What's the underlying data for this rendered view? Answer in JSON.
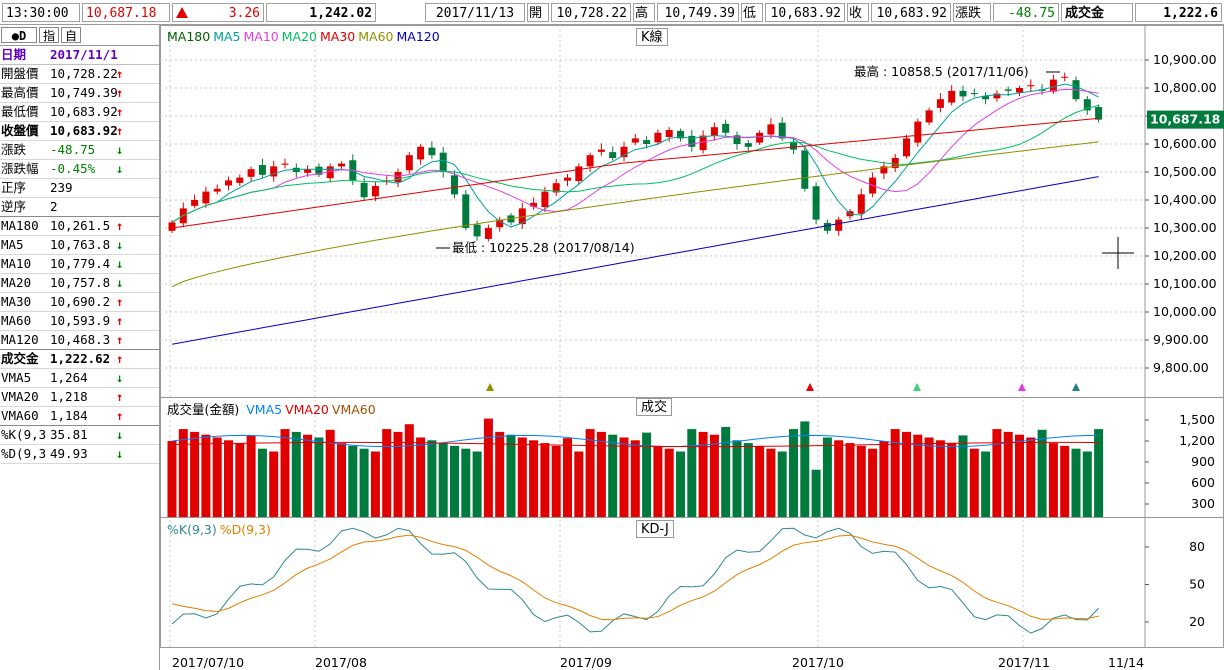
{
  "topbar": {
    "time": "13:30:00",
    "index_value": "10,687.18",
    "change": "3.26",
    "volume": "1,242.02",
    "date": "2017/11/13",
    "open_label": "開",
    "open_value": "10,728.22",
    "high_label": "高",
    "high_value": "10,749.39",
    "low_label": "低",
    "low_value": "10,683.92",
    "close_label": "收",
    "close_value": "10,683.92",
    "change_label": "漲跌",
    "change_value": "-48.75",
    "turnover_label": "成交金",
    "turnover_value": "1,222.6"
  },
  "left_panel": {
    "tabs": [
      "D",
      "指",
      "自"
    ],
    "date_label": "日期",
    "date_value": "2017/11/1",
    "rows": [
      {
        "label": "開盤價",
        "value": "10,728.22",
        "dir": "up",
        "color": "#000000"
      },
      {
        "label": "最高價",
        "value": "10,749.39",
        "dir": "up",
        "color": "#000000"
      },
      {
        "label": "最低價",
        "value": "10,683.92",
        "dir": "up",
        "color": "#000000"
      },
      {
        "label": "收盤價",
        "value": "10,683.92",
        "dir": "up",
        "color": "#000000",
        "bold": true
      },
      {
        "label": "漲跌",
        "value": "-48.75",
        "dir": "down",
        "color": "#008000"
      },
      {
        "label": "漲跌幅",
        "value": "-0.45%",
        "dir": "down",
        "color": "#008000"
      },
      {
        "label": "正序",
        "value": "239",
        "dir": "",
        "color": "#000000"
      },
      {
        "label": "逆序",
        "value": "2",
        "dir": "",
        "color": "#000000",
        "sep": true
      },
      {
        "label": "MA180",
        "value": "10,261.5",
        "dir": "up",
        "color": "#000000"
      },
      {
        "label": "MA5",
        "value": "10,763.8",
        "dir": "down",
        "color": "#000000"
      },
      {
        "label": "MA10",
        "value": "10,779.4",
        "dir": "down",
        "color": "#000000"
      },
      {
        "label": "MA20",
        "value": "10,757.8",
        "dir": "down",
        "color": "#000000"
      },
      {
        "label": "MA30",
        "value": "10,690.2",
        "dir": "up",
        "color": "#000000"
      },
      {
        "label": "MA60",
        "value": "10,593.9",
        "dir": "up",
        "color": "#000000"
      },
      {
        "label": "MA120",
        "value": "10,468.3",
        "dir": "up",
        "color": "#000000",
        "sep": true
      },
      {
        "label": "成交金",
        "value": "1,222.62",
        "dir": "up",
        "color": "#000000",
        "bold": true
      },
      {
        "label": "VMA5",
        "value": "1,264",
        "dir": "down",
        "color": "#000000"
      },
      {
        "label": "VMA20",
        "value": "1,218",
        "dir": "up",
        "color": "#000000"
      },
      {
        "label": "VMA60",
        "value": "1,184",
        "dir": "up",
        "color": "#000000",
        "sep": true
      },
      {
        "label": "%K(9,3",
        "value": "35.81",
        "dir": "down",
        "color": "#000000"
      },
      {
        "label": "%D(9,3",
        "value": "49.93",
        "dir": "down",
        "color": "#000000"
      }
    ]
  },
  "kline_pane": {
    "label": "K線",
    "legend": [
      {
        "name": "MA180",
        "color": "#006000"
      },
      {
        "name": "MA5",
        "color": "#00a0a0"
      },
      {
        "name": "MA10",
        "color": "#e040e0"
      },
      {
        "name": "MA20",
        "color": "#00c060"
      },
      {
        "name": "MA30",
        "color": "#e00000"
      },
      {
        "name": "MA60",
        "color": "#909000"
      },
      {
        "name": "MA120",
        "color": "#0000c0"
      }
    ],
    "price_ticks": [
      "10,900.00",
      "10,800.00",
      "10,700.00",
      "10,600.00",
      "10,500.00",
      "10,400.00",
      "10,300.00",
      "10,200.00",
      "10,100.00",
      "10,000.00",
      "9,900.00",
      "9,800.00"
    ],
    "last_price_tag": "10,687.18",
    "annotation_high": "最高 : 10858.5 (2017/11/06)",
    "annotation_low": "最低 : 10225.28 (2017/08/14)"
  },
  "volume_pane": {
    "label": "成交",
    "legend_title": "成交量(金額)",
    "legend": [
      {
        "name": "VMA5",
        "color": "#0080ff"
      },
      {
        "name": "VMA20",
        "color": "#e00000"
      },
      {
        "name": "VMA60",
        "color": "#a05000"
      }
    ],
    "ticks": [
      "1,500",
      "1,200",
      "900",
      "600",
      "300"
    ]
  },
  "kd_pane": {
    "label": "KD-J",
    "legend": [
      {
        "name": "%K(9,3)",
        "color": "#308890"
      },
      {
        "name": "%D(9,3)",
        "color": "#e08000"
      }
    ],
    "ticks": [
      "80",
      "50",
      "20"
    ]
  },
  "x_axis": {
    "ticks": [
      "2017/07/10",
      "2017/08",
      "2017/09",
      "2017/10",
      "2017/11",
      "11/14"
    ]
  },
  "colors": {
    "up": "#e00000",
    "down": "#007a3d",
    "grid": "#c8c8c8",
    "ma180": "#006000",
    "ma5": "#00a0a0",
    "ma10": "#e040e0",
    "ma20": "#00c060",
    "ma30": "#e00000",
    "ma60": "#909000",
    "ma120": "#0000c0"
  }
}
